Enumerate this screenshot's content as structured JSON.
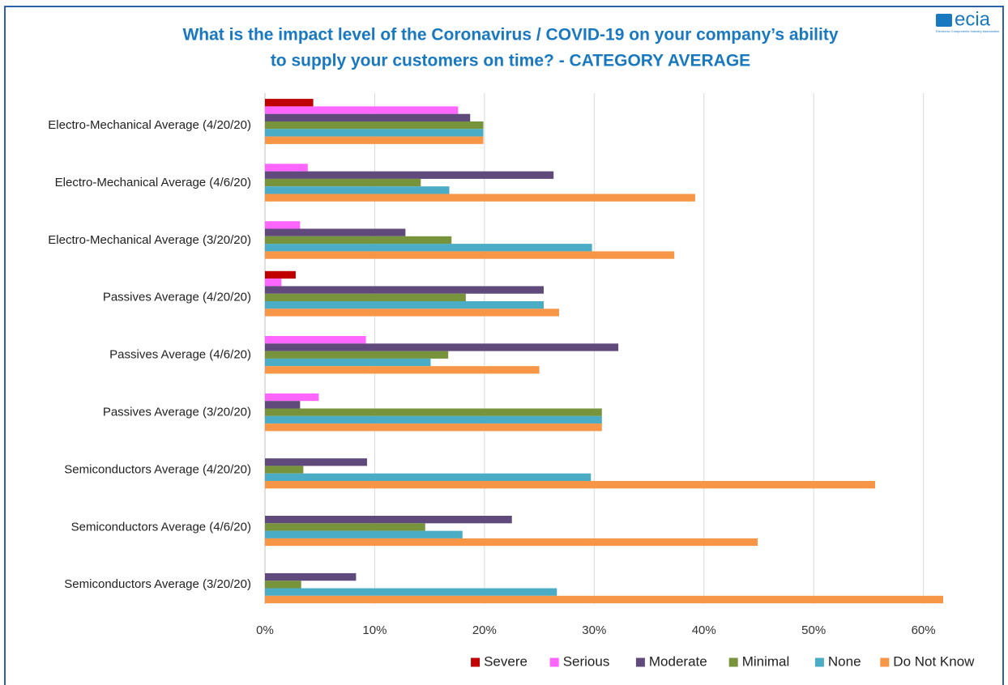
{
  "logo": {
    "text": "ecia",
    "subtext": "Electronic Components Industry Association"
  },
  "chart_data": {
    "type": "barh",
    "title": [
      "What is the impact level of the Coronavirus / COVID-19 on your company’s ability",
      "to supply your customers on time? - CATEGORY AVERAGE"
    ],
    "categories": [
      "Electro-Mechanical Average (4/20/20)",
      "Electro-Mechanical Average (4/6/20)",
      "Electro-Mechanical Average (3/20/20)",
      "Passives Average (4/20/20)",
      "Passives Average (4/6/20)",
      "Passives Average (3/20/20)",
      "Semiconductors Average (4/20/20)",
      "Semiconductors Average (4/6/20)",
      "Semiconductors Average (3/20/20)"
    ],
    "series": [
      {
        "name": "Severe",
        "color": "#c00000",
        "values": [
          4.4,
          0,
          0,
          2.8,
          0,
          0,
          0,
          0,
          0
        ]
      },
      {
        "name": "Serious",
        "color": "#ff66ff",
        "values": [
          17.6,
          3.9,
          3.2,
          1.5,
          9.2,
          4.9,
          0,
          0,
          0
        ]
      },
      {
        "name": "Moderate",
        "color": "#604a7b",
        "values": [
          18.7,
          26.3,
          12.8,
          25.4,
          32.2,
          3.2,
          9.3,
          22.5,
          8.3
        ]
      },
      {
        "name": "Minimal",
        "color": "#77933c",
        "values": [
          19.9,
          14.2,
          17.0,
          18.3,
          16.7,
          30.7,
          3.5,
          14.6,
          3.3
        ]
      },
      {
        "name": "None",
        "color": "#4bacc6",
        "values": [
          19.9,
          16.8,
          29.8,
          25.4,
          15.1,
          30.7,
          29.7,
          18.0,
          26.6
        ]
      },
      {
        "name": "Do Not Know",
        "color": "#f79646",
        "values": [
          19.9,
          39.2,
          37.3,
          26.8,
          25.0,
          30.7,
          55.6,
          44.9,
          61.8
        ]
      }
    ],
    "xlim": [
      0,
      61.8
    ],
    "xticks": [
      {
        "value": 0,
        "label": "0%"
      },
      {
        "value": 10,
        "label": "10%"
      },
      {
        "value": 20,
        "label": "20%"
      },
      {
        "value": 30,
        "label": "30%"
      },
      {
        "value": 40,
        "label": "40%"
      },
      {
        "value": 50,
        "label": "50%"
      },
      {
        "value": 60,
        "label": "60%"
      }
    ],
    "grid": true,
    "legend": "bottom"
  }
}
